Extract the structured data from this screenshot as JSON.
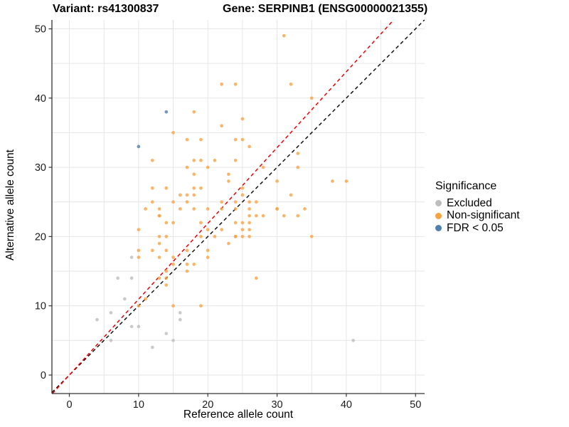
{
  "titles": {
    "variant": "Variant: rs41300837",
    "gene": "Gene: SERPINB1 (ENSG00000021355)"
  },
  "axes": {
    "x_label": "Reference allele count",
    "y_label": "Alternative allele count",
    "x_ticks": [
      0,
      10,
      20,
      30,
      40,
      50
    ],
    "y_ticks": [
      0,
      10,
      20,
      30,
      40,
      50
    ]
  },
  "legend": {
    "title": "Significance",
    "items": [
      {
        "label": "Excluded",
        "color": "#BDBDBD"
      },
      {
        "label": "Non-significant",
        "color": "#F9A242"
      },
      {
        "label": "FDR < 0.05",
        "color": "#4E80AE"
      }
    ]
  },
  "colors": {
    "background": "#FFFFFF",
    "grid": "#E6E6E6",
    "axis": "#333333",
    "identity_line": "#111111",
    "ratio_line": "#EE0000"
  },
  "chart_data": {
    "type": "scatter",
    "title": "Variant: rs41300837 — Gene: SERPINB1 (ENSG00000021355)",
    "xlabel": "Reference allele count",
    "ylabel": "Alternative allele count",
    "xlim": [
      -2.5,
      51.3
    ],
    "ylim": [
      -2.7,
      51.3
    ],
    "grid": "on",
    "legend_position": "right",
    "series": [
      {
        "name": "Non-significant",
        "color": "#F9A242",
        "points": [
          [
            31,
            49
          ],
          [
            22,
            42
          ],
          [
            24,
            42
          ],
          [
            32,
            42
          ],
          [
            35,
            40
          ],
          [
            18,
            38
          ],
          [
            25,
            37
          ],
          [
            22,
            36
          ],
          [
            15,
            35
          ],
          [
            17,
            34
          ],
          [
            19,
            34
          ],
          [
            24,
            34
          ],
          [
            25,
            34
          ],
          [
            26,
            33
          ],
          [
            33,
            32
          ],
          [
            12,
            31
          ],
          [
            18,
            31
          ],
          [
            19,
            31
          ],
          [
            21,
            31
          ],
          [
            24,
            31
          ],
          [
            17,
            30
          ],
          [
            20,
            30
          ],
          [
            28,
            30
          ],
          [
            33,
            30
          ],
          [
            18,
            29
          ],
          [
            23,
            29
          ],
          [
            23,
            28
          ],
          [
            30,
            28
          ],
          [
            38,
            28
          ],
          [
            40,
            28
          ],
          [
            12,
            27
          ],
          [
            14,
            27
          ],
          [
            18,
            27
          ],
          [
            19,
            27
          ],
          [
            25,
            27
          ],
          [
            16,
            26
          ],
          [
            17,
            26
          ],
          [
            18,
            26
          ],
          [
            25,
            26
          ],
          [
            32,
            26
          ],
          [
            12,
            25
          ],
          [
            15,
            25
          ],
          [
            17,
            25
          ],
          [
            22,
            25
          ],
          [
            24,
            25
          ],
          [
            26,
            25
          ],
          [
            27,
            25
          ],
          [
            11,
            24
          ],
          [
            13,
            24
          ],
          [
            16,
            24
          ],
          [
            18,
            24
          ],
          [
            20,
            24
          ],
          [
            22,
            24
          ],
          [
            24,
            24
          ],
          [
            26,
            24
          ],
          [
            30,
            24
          ],
          [
            30,
            24
          ],
          [
            34,
            24
          ],
          [
            13,
            23
          ],
          [
            13,
            23
          ],
          [
            26,
            23
          ],
          [
            27,
            23
          ],
          [
            28,
            23
          ],
          [
            31,
            23
          ],
          [
            33,
            23
          ],
          [
            14,
            22
          ],
          [
            15,
            22
          ],
          [
            19,
            22
          ],
          [
            24,
            22
          ],
          [
            25,
            22
          ],
          [
            26,
            22
          ],
          [
            10,
            21
          ],
          [
            20,
            21
          ],
          [
            22,
            21
          ],
          [
            25,
            21
          ],
          [
            26,
            21
          ],
          [
            13,
            20
          ],
          [
            14,
            20
          ],
          [
            19,
            20
          ],
          [
            21,
            20
          ],
          [
            24,
            20
          ],
          [
            24,
            20
          ],
          [
            25,
            20
          ],
          [
            26,
            20
          ],
          [
            35,
            20
          ],
          [
            13,
            19
          ],
          [
            23,
            19
          ],
          [
            10,
            18
          ],
          [
            12,
            18
          ],
          [
            14,
            18
          ],
          [
            17,
            18
          ],
          [
            20,
            18
          ],
          [
            10,
            17
          ],
          [
            13,
            17
          ],
          [
            15,
            17
          ],
          [
            20,
            17
          ],
          [
            15,
            16
          ],
          [
            17,
            16
          ],
          [
            18,
            16
          ],
          [
            14,
            15
          ],
          [
            17,
            15
          ],
          [
            13,
            14
          ],
          [
            14,
            14
          ],
          [
            27,
            14
          ],
          [
            14,
            13
          ],
          [
            11,
            11
          ],
          [
            10,
            10
          ],
          [
            15,
            10
          ],
          [
            19,
            10
          ]
        ]
      },
      {
        "name": "Excluded",
        "color": "#BDBDBD",
        "points": [
          [
            9,
            17
          ],
          [
            7,
            14
          ],
          [
            9,
            14
          ],
          [
            8,
            11
          ],
          [
            6,
            9
          ],
          [
            4,
            8
          ],
          [
            16,
            9
          ],
          [
            16,
            8
          ],
          [
            9,
            7
          ],
          [
            10,
            7
          ],
          [
            14,
            6
          ],
          [
            15,
            5
          ],
          [
            6,
            5
          ],
          [
            41,
            5
          ],
          [
            12,
            4
          ]
        ]
      },
      {
        "name": "FDR < 0.05",
        "color": "#4E80AE",
        "points": [
          [
            14,
            38
          ],
          [
            10,
            33
          ]
        ]
      }
    ],
    "lines": [
      {
        "name": "identity",
        "slope": 1.0,
        "intercept": 0,
        "color": "#111111",
        "style": "dashed"
      },
      {
        "name": "expected-ratio",
        "slope": 1.095,
        "intercept": 0,
        "color": "#EE0000",
        "style": "dashed"
      }
    ]
  }
}
